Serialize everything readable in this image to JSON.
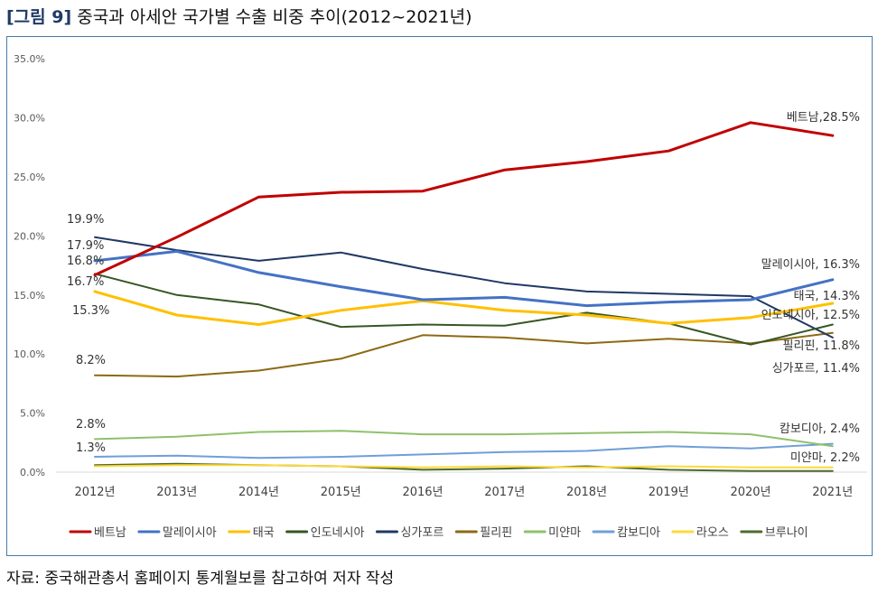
{
  "figure": {
    "label": "[그림 9]",
    "title": "중국과 아세안 국가별 수출 비중 추이(2012~2021년)",
    "source": "자료: 중국해관총서 홈페이지 통계월보를 참고하여 저자 작성"
  },
  "chart_data": {
    "type": "line",
    "title": "",
    "xlabel": "",
    "ylabel": "",
    "x": [
      "2012년",
      "2013년",
      "2014년",
      "2015년",
      "2016년",
      "2017년",
      "2018년",
      "2019년",
      "2020년",
      "2021년"
    ],
    "y_ticks": [
      "0.0%",
      "5.0%",
      "10.0%",
      "15.0%",
      "20.0%",
      "25.0%",
      "30.0%",
      "35.0%"
    ],
    "ylim": [
      0,
      35
    ],
    "grid": false,
    "legend_position": "bottom",
    "series": [
      {
        "name": "베트남",
        "color": "#c00000",
        "width": 3,
        "values": [
          16.7,
          19.9,
          23.3,
          23.7,
          23.8,
          25.6,
          26.3,
          27.2,
          29.6,
          28.5
        ],
        "start_label": "16.7%",
        "end_label": "베트남,28.5%"
      },
      {
        "name": "말레이시아",
        "color": "#4472c4",
        "width": 3,
        "values": [
          17.9,
          18.7,
          16.9,
          15.7,
          14.6,
          14.8,
          14.1,
          14.4,
          14.6,
          16.3
        ],
        "start_label": "17.9%",
        "end_label": "말레이시아, 16.3%"
      },
      {
        "name": "태국",
        "color": "#ffc000",
        "width": 3,
        "values": [
          15.3,
          13.3,
          12.5,
          13.7,
          14.5,
          13.7,
          13.3,
          12.6,
          13.1,
          14.3
        ],
        "start_label": "15.3%",
        "end_label": "태국, 14.3%"
      },
      {
        "name": "인도네시아",
        "color": "#375623",
        "width": 2,
        "values": [
          16.8,
          15.0,
          14.2,
          12.3,
          12.5,
          12.4,
          13.5,
          12.6,
          10.8,
          12.5
        ],
        "start_label": "16.8%",
        "end_label": "인도네시아, 12.5%"
      },
      {
        "name": "싱가포르",
        "color": "#203864",
        "width": 2,
        "values": [
          19.9,
          18.8,
          17.9,
          18.6,
          17.2,
          16.0,
          15.3,
          15.1,
          14.9,
          11.4
        ],
        "start_label": "19.9%",
        "end_label": "싱가포르, 11.4%"
      },
      {
        "name": "필리핀",
        "color": "#8c6a14",
        "width": 2,
        "values": [
          8.2,
          8.1,
          8.6,
          9.6,
          11.6,
          11.4,
          10.9,
          11.3,
          10.9,
          11.8
        ],
        "start_label": "8.2%",
        "end_label": "필리핀, 11.8%"
      },
      {
        "name": "미얀마",
        "color": "#8fc06b",
        "width": 2,
        "values": [
          2.8,
          3.0,
          3.4,
          3.5,
          3.2,
          3.2,
          3.3,
          3.4,
          3.2,
          2.2
        ],
        "start_label": "2.8%",
        "end_label": "미얀마, 2.2%"
      },
      {
        "name": "캄보디아",
        "color": "#6f9fd8",
        "width": 2,
        "values": [
          1.3,
          1.4,
          1.2,
          1.3,
          1.5,
          1.7,
          1.8,
          2.2,
          2.0,
          2.4
        ],
        "start_label": "1.3%",
        "end_label": "캄보디아, 2.4%"
      },
      {
        "name": "라오스",
        "color": "#ffd93a",
        "width": 2,
        "values": [
          0.5,
          0.6,
          0.6,
          0.5,
          0.4,
          0.5,
          0.4,
          0.5,
          0.4,
          0.4
        ],
        "start_label": "",
        "end_label": ""
      },
      {
        "name": "브루나이",
        "color": "#4e6b2e",
        "width": 2,
        "values": [
          0.6,
          0.7,
          0.6,
          0.5,
          0.2,
          0.3,
          0.5,
          0.2,
          0.1,
          0.1
        ],
        "start_label": "",
        "end_label": ""
      }
    ]
  }
}
